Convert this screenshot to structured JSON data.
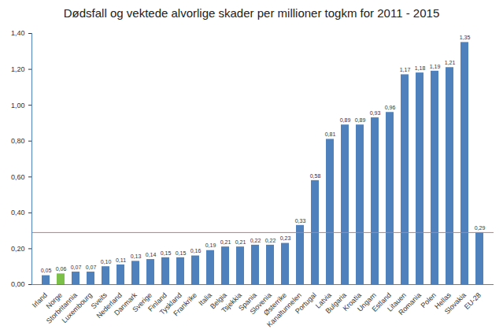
{
  "chart_data": {
    "type": "bar",
    "title": "Dødsfall og vektede alvorlige skader per millioner togkm for 2011 - 2015",
    "categories": [
      "Irland",
      "Norge",
      "Storbritannia",
      "Luxembourg",
      "Sveits",
      "Nederland",
      "Danmark",
      "Sverige",
      "Finland",
      "Tyskland",
      "Frankrike",
      "Italia",
      "Belgia",
      "Tsjekkia",
      "Spania",
      "Slovenia",
      "Østerrike",
      "Kanaltunnelen",
      "Portugal",
      "Latvia",
      "Bulgaria",
      "Kroatia",
      "Ungarn",
      "Estland",
      "Litauen",
      "Romania",
      "Polen",
      "Hellas",
      "Slovakia",
      "EU-28"
    ],
    "values": [
      0.05,
      0.06,
      0.07,
      0.07,
      0.1,
      0.11,
      0.13,
      0.14,
      0.15,
      0.15,
      0.16,
      0.19,
      0.21,
      0.21,
      0.22,
      0.22,
      0.23,
      0.33,
      0.58,
      0.81,
      0.89,
      0.89,
      0.93,
      0.96,
      1.17,
      1.18,
      1.19,
      1.21,
      1.35,
      0.29
    ],
    "value_labels": [
      "0,05",
      "0,06",
      "0,07",
      "0,07",
      "0,10",
      "0,11",
      "0,13",
      "0,14",
      "0,15",
      "0,15",
      "0,16",
      "0,19",
      "0,21",
      "0,21",
      "0,22",
      "0,22",
      "0,23",
      "0,33",
      "0,58",
      "0,81",
      "0,89",
      "0,89",
      "0,93",
      "0,96",
      "1,17",
      "1,18",
      "1,19",
      "1,21",
      "1,35",
      "0,29"
    ],
    "colors": [
      "#4f81bd",
      "#7cc04a",
      "#4f81bd",
      "#4f81bd",
      "#4f81bd",
      "#4f81bd",
      "#4f81bd",
      "#4f81bd",
      "#4f81bd",
      "#4f81bd",
      "#4f81bd",
      "#4f81bd",
      "#4f81bd",
      "#4f81bd",
      "#4f81bd",
      "#4f81bd",
      "#4f81bd",
      "#4f81bd",
      "#4f81bd",
      "#4f81bd",
      "#4f81bd",
      "#4f81bd",
      "#4f81bd",
      "#4f81bd",
      "#4f81bd",
      "#4f81bd",
      "#4f81bd",
      "#4f81bd",
      "#4f81bd",
      "#4f81bd"
    ],
    "ylim": [
      0,
      1.4
    ],
    "yticks": [
      {
        "value": 0,
        "label": "0,00"
      },
      {
        "value": 0.2,
        "label": "0,20"
      },
      {
        "value": 0.4,
        "label": "0,40"
      },
      {
        "value": 0.6,
        "label": "0,60"
      },
      {
        "value": 0.8,
        "label": "0,80"
      },
      {
        "value": 1.0,
        "label": "1,00"
      },
      {
        "value": 1.2,
        "label": "1,20"
      },
      {
        "value": 1.4,
        "label": "1,40"
      }
    ],
    "grid": false,
    "data_labels": true,
    "reference_line": {
      "value": 0.29,
      "color": "#e07070"
    }
  }
}
